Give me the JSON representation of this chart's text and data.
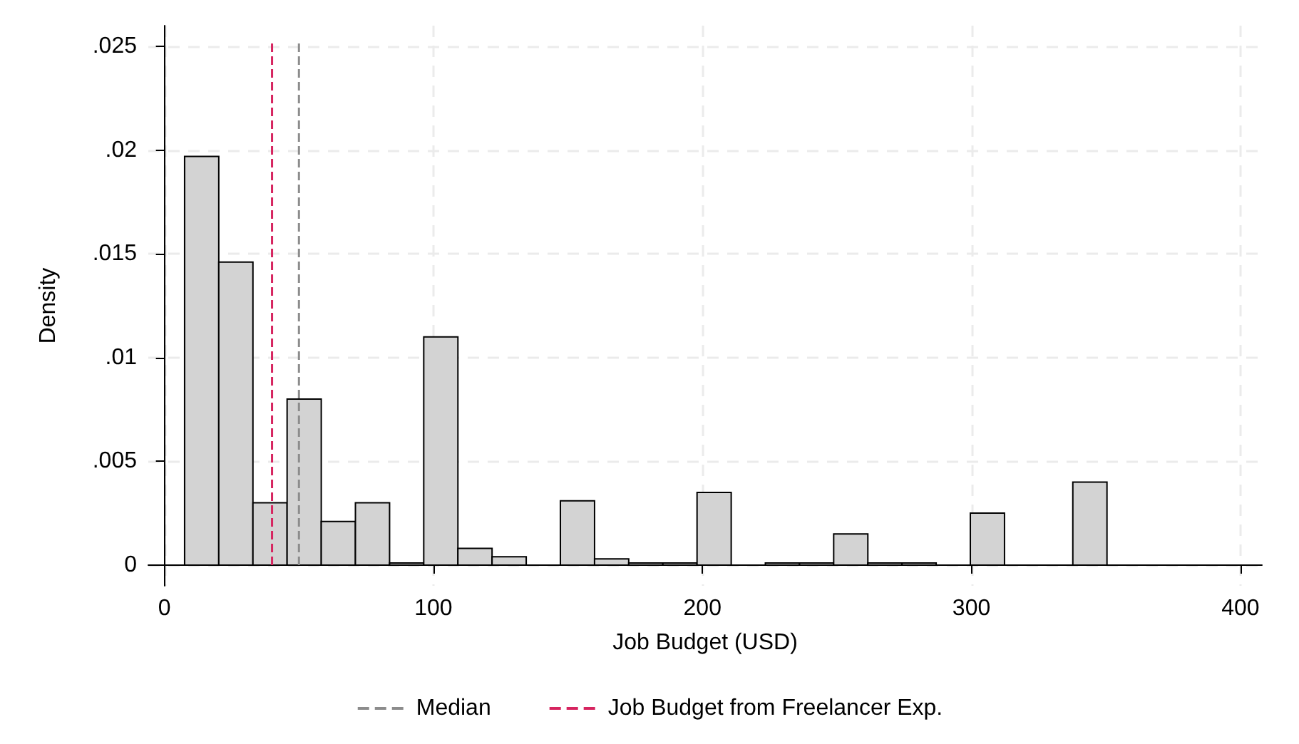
{
  "chart_data": {
    "type": "histogram",
    "xlabel": "Job Budget (USD)",
    "ylabel": "Density",
    "bins": [
      7.5,
      20.2,
      32.9,
      45.6,
      58.3,
      71,
      83.7,
      96.4,
      109.1,
      121.8,
      134.5,
      147.2,
      159.9,
      172.6,
      185.3,
      198,
      210.7,
      223.4,
      236.1,
      248.8,
      261.5,
      274.2,
      286.9,
      299.6,
      312.3,
      325,
      337.7,
      350.4
    ],
    "values": [
      0.0197,
      0.0146,
      0.003,
      0.008,
      0.0021,
      0.003,
      0.0001,
      0.011,
      0.0008,
      0.0004,
      null,
      0.0031,
      0.0003,
      0.0001,
      0.0001,
      0.0035,
      null,
      0.0001,
      0.0001,
      0.0015,
      0.0001,
      0.0001,
      null,
      0.0025,
      null,
      null,
      0.004
    ],
    "color": "#d3d3d3",
    "xlim": [
      -6,
      408
    ],
    "xticks": [
      0,
      100,
      200,
      300,
      400
    ],
    "ylim": [
      -0.001,
      0.026
    ],
    "yticks": [
      0,
      {
        "value": 0.005,
        "label": ".005"
      },
      {
        "value": 0.01,
        "label": ".01"
      },
      {
        "value": 0.015,
        "label": ".015"
      },
      {
        "value": 0.02,
        "label": ".02"
      },
      {
        "value": 0.025,
        "label": ".025"
      }
    ],
    "ref_lines": [
      {
        "axis": "x",
        "value": 50,
        "label": "Median",
        "color": "#8c8c8c",
        "line_style": "dashed"
      },
      {
        "axis": "x",
        "value": 40,
        "label": "Job Budget from Freelancer Exp.",
        "color": "#d6245f",
        "line_style": "dashed"
      }
    ],
    "grid": true,
    "legend": "bottom"
  }
}
